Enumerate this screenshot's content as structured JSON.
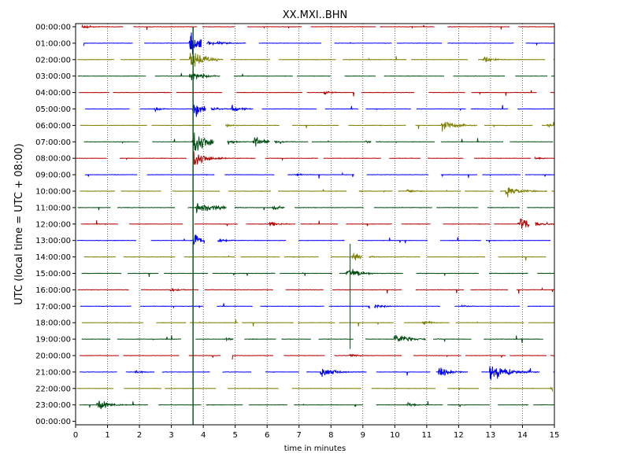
{
  "chart_data": {
    "type": "line",
    "title": "XX.MXI..BHN",
    "xlabel": "time in minutes",
    "ylabel": "UTC (local time = UTC + 08:00)",
    "xlim": [
      0,
      15
    ],
    "x_ticks": [
      "0",
      "1",
      "2",
      "3",
      "4",
      "5",
      "6",
      "7",
      "8",
      "9",
      "10",
      "11",
      "12",
      "13",
      "14",
      "15"
    ],
    "y_ticks": [
      "00:00:00",
      "01:00:00",
      "02:00:00",
      "03:00:00",
      "04:00:00",
      "05:00:00",
      "06:00:00",
      "07:00:00",
      "08:00:00",
      "09:00:00",
      "10:00:00",
      "11:00:00",
      "12:00:00",
      "13:00:00",
      "14:00:00",
      "15:00:00",
      "16:00:00",
      "17:00:00",
      "18:00:00",
      "19:00:00",
      "20:00:00",
      "21:00:00",
      "22:00:00",
      "23:00:00",
      "00:00:00"
    ],
    "grid": "vertical dotted lines at each minute",
    "line_colors": [
      "#b40000",
      "#0000ff",
      "#7f7f00",
      "#004d12"
    ],
    "events": [
      {
        "row": 0,
        "minute": 0.2,
        "amp": 0.6
      },
      {
        "row": 1,
        "minute": 3.6,
        "amp": 2.4
      },
      {
        "row": 2,
        "minute": 3.6,
        "amp": 2.2
      },
      {
        "row": 2,
        "minute": 12.8,
        "amp": 0.9
      },
      {
        "row": 3,
        "minute": 3.6,
        "amp": 1.4
      },
      {
        "row": 4,
        "minute": 7.8,
        "amp": 0.5
      },
      {
        "row": 5,
        "minute": 3.7,
        "amp": 1.8
      },
      {
        "row": 5,
        "minute": 4.9,
        "amp": 0.9
      },
      {
        "row": 5,
        "minute": 2.5,
        "amp": 0.4
      },
      {
        "row": 6,
        "minute": 11.5,
        "amp": 1.6
      },
      {
        "row": 6,
        "minute": 4.7,
        "amp": 0.6
      },
      {
        "row": 6,
        "minute": 14.8,
        "amp": 0.4
      },
      {
        "row": 7,
        "minute": 3.7,
        "amp": 2.5
      },
      {
        "row": 7,
        "minute": 5.6,
        "amp": 1.6
      },
      {
        "row": 7,
        "minute": 9.1,
        "amp": 0.4
      },
      {
        "row": 8,
        "minute": 3.7,
        "amp": 1.8
      },
      {
        "row": 8,
        "minute": 14.4,
        "amp": 0.4
      },
      {
        "row": 9,
        "minute": 6.9,
        "amp": 0.4
      },
      {
        "row": 10,
        "minute": 13.5,
        "amp": 1.6
      },
      {
        "row": 10,
        "minute": 8.7,
        "amp": 0.4
      },
      {
        "row": 10,
        "minute": 10.4,
        "amp": 0.5
      },
      {
        "row": 11,
        "minute": 3.8,
        "amp": 2.0
      },
      {
        "row": 11,
        "minute": 6.2,
        "amp": 0.7
      },
      {
        "row": 12,
        "minute": 13.9,
        "amp": 1.7
      },
      {
        "row": 12,
        "minute": 6.1,
        "amp": 0.6
      },
      {
        "row": 13,
        "minute": 3.7,
        "amp": 1.5
      },
      {
        "row": 13,
        "minute": 4.5,
        "amp": 0.5
      },
      {
        "row": 14,
        "minute": 8.7,
        "amp": 1.2
      },
      {
        "row": 15,
        "minute": 8.5,
        "amp": 1.6
      },
      {
        "row": 16,
        "minute": 3.0,
        "amp": 0.5
      },
      {
        "row": 17,
        "minute": 9.2,
        "amp": 1.0
      },
      {
        "row": 17,
        "minute": 12.1,
        "amp": 0.3
      },
      {
        "row": 18,
        "minute": 10.9,
        "amp": 0.6
      },
      {
        "row": 19,
        "minute": 10.0,
        "amp": 1.6
      },
      {
        "row": 19,
        "minute": 4.7,
        "amp": 0.4
      },
      {
        "row": 20,
        "minute": 8.6,
        "amp": 0.5
      },
      {
        "row": 21,
        "minute": 7.7,
        "amp": 1.5
      },
      {
        "row": 21,
        "minute": 11.4,
        "amp": 1.3
      },
      {
        "row": 21,
        "minute": 13.0,
        "amp": 2.3
      },
      {
        "row": 21,
        "minute": 1.9,
        "amp": 0.4
      },
      {
        "row": 22,
        "minute": 14.9,
        "amp": 0.6
      },
      {
        "row": 23,
        "minute": 0.7,
        "amp": 1.4
      },
      {
        "row": 23,
        "minute": 10.4,
        "amp": 0.5
      }
    ]
  }
}
